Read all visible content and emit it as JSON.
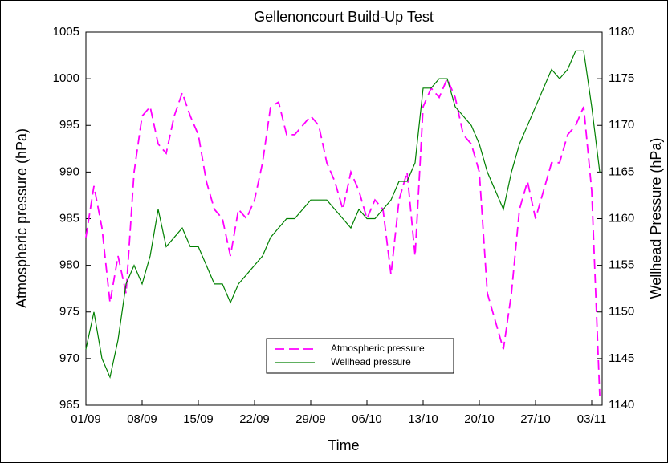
{
  "chart_data": {
    "type": "line",
    "title": "Gellenoncourt Build-Up Test",
    "xlabel": "Time",
    "ylabel": "Atmospheric pressure (hPa)",
    "y2label": "Wellhead Pressure (hPa)",
    "x": [
      0,
      1,
      2,
      3,
      4,
      5,
      6,
      7,
      8,
      9,
      10,
      11,
      12,
      13,
      14,
      15,
      16,
      17,
      18,
      19,
      20,
      21,
      22,
      23,
      24,
      25,
      26,
      27,
      28,
      29,
      30,
      31,
      32,
      33,
      34,
      35,
      36,
      37,
      38,
      39,
      40,
      41,
      42,
      43,
      44,
      45,
      46,
      47,
      48,
      49,
      50,
      51,
      52,
      53,
      54,
      55,
      56,
      57,
      58,
      59,
      60,
      61,
      62,
      63,
      64
    ],
    "xlim": [
      0,
      64.3
    ],
    "xticks": [
      {
        "value": 0,
        "label": "01/09"
      },
      {
        "value": 7,
        "label": "08/09"
      },
      {
        "value": 14,
        "label": "15/09"
      },
      {
        "value": 21,
        "label": "22/09"
      },
      {
        "value": 28,
        "label": "29/09"
      },
      {
        "value": 35,
        "label": "06/10"
      },
      {
        "value": 42,
        "label": "13/10"
      },
      {
        "value": 49,
        "label": "20/10"
      },
      {
        "value": 56,
        "label": "27/10"
      },
      {
        "value": 63,
        "label": "03/11"
      }
    ],
    "ylim": [
      965,
      1005
    ],
    "yticks": [
      965,
      970,
      975,
      980,
      985,
      990,
      995,
      1000,
      1005
    ],
    "y2lim": [
      1140,
      1180
    ],
    "y2ticks": [
      1140,
      1145,
      1150,
      1155,
      1160,
      1165,
      1170,
      1175,
      1180
    ],
    "legend": "lower center",
    "series": [
      {
        "name": "Atmospheric pressure",
        "color": "#ff00ff",
        "dashed": true,
        "axis": "y",
        "values": [
          983,
          988.5,
          984,
          976,
          981,
          977,
          990,
          996,
          997,
          993,
          992,
          996,
          998.5,
          996,
          994,
          989,
          986,
          985,
          981,
          986,
          985,
          987,
          991,
          997,
          997.5,
          994,
          994,
          995,
          996,
          995,
          991,
          989,
          986,
          990,
          988,
          985,
          987,
          986,
          979,
          987,
          990,
          981,
          997,
          999,
          998,
          1000,
          998,
          994,
          993,
          990,
          977,
          974,
          971,
          977,
          986,
          989,
          985,
          988,
          991,
          991,
          994,
          995,
          997,
          988,
          966
        ]
      },
      {
        "name": "Wellhead pressure",
        "color": "#008000",
        "dashed": false,
        "axis": "y2",
        "values": [
          1146,
          1150,
          1145,
          1143,
          1147,
          1153,
          1155,
          1153,
          1156,
          1161,
          1157,
          1158,
          1159,
          1157,
          1157,
          1155,
          1153,
          1153,
          1151,
          1153,
          1154,
          1155,
          1156,
          1158,
          1159,
          1160,
          1160,
          1161,
          1162,
          1162,
          1162,
          1161,
          1160,
          1159,
          1161,
          1160,
          1160,
          1161,
          1162,
          1164,
          1164,
          1166,
          1174,
          1174,
          1175,
          1175,
          1172,
          1171,
          1170,
          1168,
          1165,
          1163,
          1161,
          1165,
          1168,
          1170,
          1172,
          1174,
          1176,
          1175,
          1176,
          1178,
          1178,
          1172,
          1165
        ]
      }
    ]
  }
}
